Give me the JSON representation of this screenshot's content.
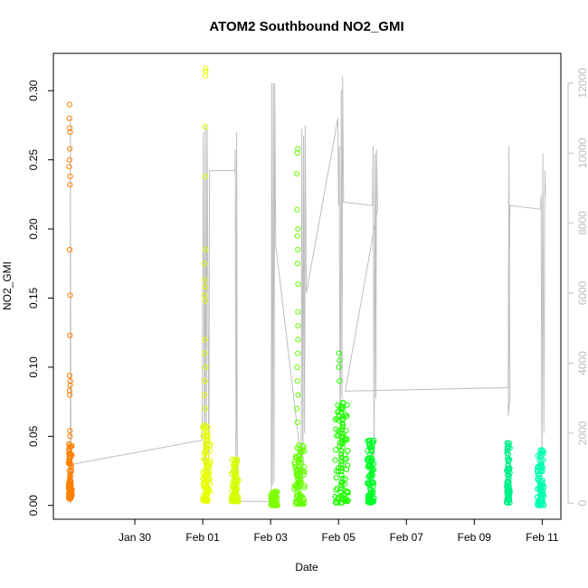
{
  "chart_data": {
    "type": "scatter",
    "title": "ATOM2 Southbound NO2_GMI",
    "xlabel": "Date",
    "ylabel": "NO2_GMI",
    "x_ticks": [
      "Jan 30",
      "Feb 01",
      "Feb 03",
      "Feb 05",
      "Feb 07",
      "Feb 09",
      "Feb 11"
    ],
    "x_tick_days": [
      30,
      32,
      34,
      36,
      38,
      40,
      42
    ],
    "xlim": [
      27.6,
      42.55
    ],
    "ylim": [
      -0.01,
      0.327
    ],
    "y_ticks": [
      0.0,
      0.05,
      0.1,
      0.15,
      0.2,
      0.25,
      0.3
    ],
    "y_tick_labels": [
      "0.00",
      "0.05",
      "0.10",
      "0.15",
      "0.20",
      "0.25",
      "0.30"
    ],
    "y2lim": [
      -460,
      12850
    ],
    "y2_ticks": [
      0,
      2000,
      4000,
      6000,
      8000,
      10000,
      12000
    ],
    "y2_tick_labels": [
      "0",
      "2000",
      "4000",
      "6000",
      "8000",
      "10000",
      "12000"
    ],
    "colors": {
      "axis": "#000000",
      "altitude_line": "#bebebe",
      "right_axis": "#bdbdbd"
    },
    "flights": [
      {
        "color": "#ff7f00",
        "x_range": [
          28.05,
          28.15
        ],
        "bulk_y": [
          0.005,
          0.045
        ],
        "outliers": [
          0.29,
          0.28,
          0.273,
          0.27,
          0.258,
          0.25,
          0.245,
          0.238,
          0.232,
          0.185,
          0.152,
          0.123,
          0.094,
          0.09,
          0.087,
          0.083,
          0.08,
          0.054,
          0.05
        ]
      },
      {
        "color": "#e6ff00",
        "x_range": [
          32.0,
          32.22
        ],
        "bulk_y": [
          0.003,
          0.06
        ],
        "outliers": [
          0.316,
          0.314,
          0.311,
          0.274,
          0.238,
          0.185,
          0.175,
          0.163,
          0.158,
          0.152,
          0.148,
          0.12,
          0.11,
          0.1,
          0.09,
          0.08,
          0.07
        ]
      },
      {
        "color": "#d5ff00",
        "x_range": [
          32.85,
          33.05
        ],
        "bulk_y": [
          0.003,
          0.035
        ],
        "outliers": []
      },
      {
        "color": "#7fff00",
        "x_range": [
          34.0,
          34.2
        ],
        "bulk_y": [
          0.0,
          0.01
        ],
        "outliers": []
      },
      {
        "color": "#66ff00",
        "x_range": [
          34.7,
          35.0
        ],
        "bulk_y": [
          0.001,
          0.045
        ],
        "outliers": [
          0.258,
          0.255,
          0.24,
          0.214,
          0.2,
          0.195,
          0.185,
          0.175,
          0.16,
          0.14,
          0.13,
          0.12,
          0.11,
          0.1,
          0.09,
          0.08,
          0.07,
          0.06
        ]
      },
      {
        "color": "#20ff00",
        "x_range": [
          35.9,
          36.3
        ],
        "bulk_y": [
          0.002,
          0.075
        ],
        "outliers": [
          0.11,
          0.105,
          0.1,
          0.09
        ]
      },
      {
        "color": "#00ff28",
        "x_range": [
          36.85,
          37.05
        ],
        "bulk_y": [
          0.002,
          0.048
        ],
        "outliers": []
      },
      {
        "color": "#00f08a",
        "x_range": [
          40.95,
          41.05
        ],
        "bulk_y": [
          0.002,
          0.046
        ],
        "outliers": []
      },
      {
        "color": "#00ffb0",
        "x_range": [
          41.85,
          42.05
        ],
        "bulk_y": [
          0.0,
          0.041
        ],
        "outliers": []
      }
    ],
    "altitude_profile": [
      [
        28.1,
        0
      ],
      [
        28.1,
        11000
      ],
      [
        28.12,
        0
      ],
      [
        28.1,
        1100
      ],
      [
        31.98,
        1800
      ],
      [
        32.0,
        6000
      ],
      [
        32.02,
        10600
      ],
      [
        32.05,
        300
      ],
      [
        32.08,
        10800
      ],
      [
        32.1,
        800
      ],
      [
        32.13,
        10700
      ],
      [
        32.18,
        300
      ],
      [
        32.2,
        9500
      ],
      [
        32.22,
        9500
      ],
      [
        32.95,
        9500
      ],
      [
        32.96,
        10100
      ],
      [
        32.98,
        200
      ],
      [
        33.0,
        10600
      ],
      [
        33.02,
        0
      ],
      [
        33.0,
        50
      ],
      [
        34.0,
        50
      ],
      [
        34.02,
        500
      ],
      [
        34.03,
        12000
      ],
      [
        34.05,
        500
      ],
      [
        34.08,
        12000
      ],
      [
        34.1,
        600
      ],
      [
        34.12,
        12000
      ],
      [
        34.15,
        7300
      ],
      [
        34.16,
        7300
      ],
      [
        34.9,
        1200
      ],
      [
        34.92,
        10700
      ],
      [
        34.95,
        500
      ],
      [
        34.97,
        10500
      ],
      [
        35.0,
        2000
      ],
      [
        35.02,
        10800
      ],
      [
        35.05,
        6000
      ],
      [
        35.98,
        11000
      ],
      [
        36.0,
        8500
      ],
      [
        36.02,
        10200
      ],
      [
        36.05,
        1000
      ],
      [
        36.08,
        11800
      ],
      [
        36.1,
        3000
      ],
      [
        36.12,
        12200
      ],
      [
        36.15,
        8600
      ],
      [
        37.0,
        8500
      ],
      [
        37.02,
        10200
      ],
      [
        37.05,
        1300
      ],
      [
        37.08,
        10000
      ],
      [
        37.1,
        3000
      ],
      [
        37.12,
        10100
      ],
      [
        37.15,
        8400
      ],
      [
        36.2,
        3200
      ],
      [
        41.0,
        3300
      ],
      [
        41.02,
        10200
      ],
      [
        41.05,
        3000
      ],
      [
        41.0,
        2500
      ],
      [
        41.05,
        8500
      ],
      [
        41.95,
        8400
      ],
      [
        41.97,
        8800
      ],
      [
        41.99,
        600
      ],
      [
        42.02,
        10000
      ],
      [
        42.05,
        2000
      ],
      [
        42.08,
        9500
      ],
      [
        42.1,
        8800
      ]
    ]
  }
}
